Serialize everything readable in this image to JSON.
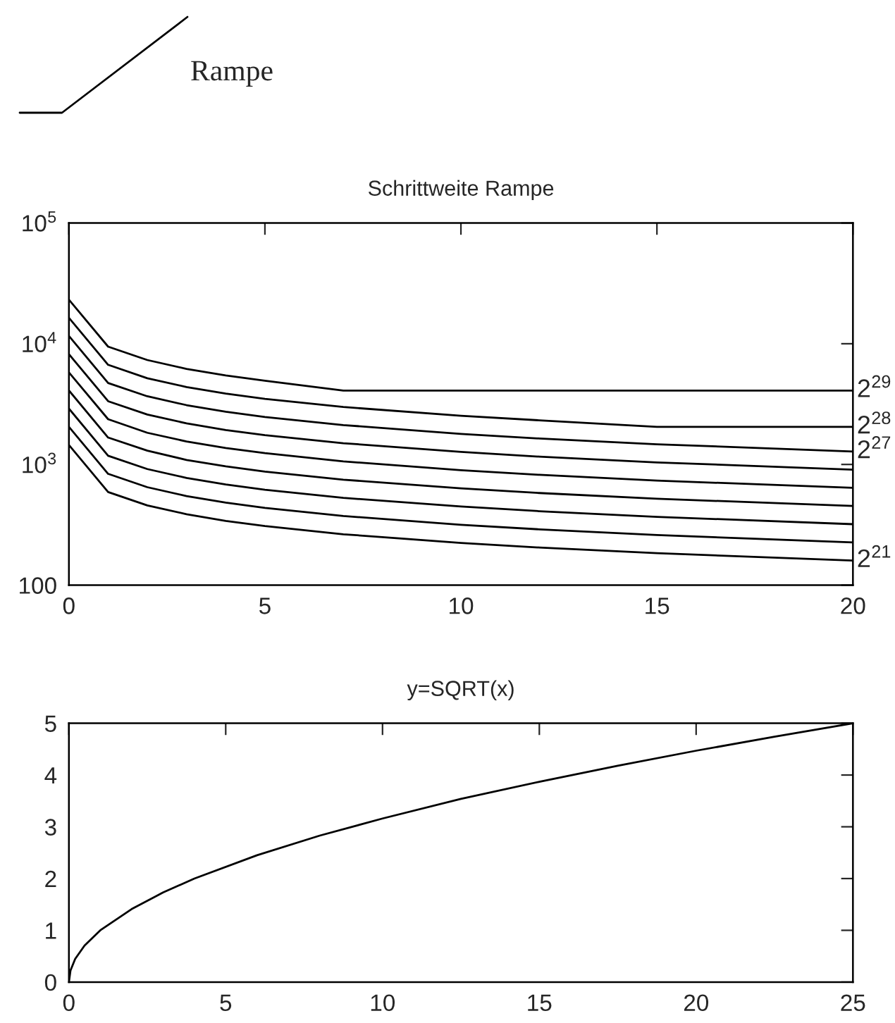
{
  "chart_data": [
    {
      "type": "line",
      "title": "Schrittweite Rampe",
      "annotations": [
        "Rampe"
      ],
      "log": "y",
      "x": [
        0,
        1,
        2,
        3,
        4,
        5,
        7,
        10,
        12,
        15,
        20
      ],
      "xlim": [
        0,
        20
      ],
      "xticks": [
        0,
        5,
        10,
        15,
        20
      ],
      "ylim": [
        100,
        100000
      ],
      "yticks": [
        100,
        {
          "value": 1000,
          "label": "10$^{3}$"
        },
        {
          "value": 10000,
          "label": "10$^{4}$"
        },
        {
          "value": 100000,
          "label": "10$^{5}$"
        }
      ],
      "series": [
        {
          "name": "2$^{29}$",
          "color": "#000000",
          "values": [
            23170,
            9460,
            7330,
            6190,
            5460,
            4940,
            4096,
            4096,
            4096,
            4096,
            4096
          ]
        },
        {
          "name": "2$^{28}$",
          "color": "#000000",
          "values": [
            16380,
            6690,
            5180,
            4380,
            3860,
            3490,
            2990,
            2530,
            2320,
            2048,
            2048
          ]
        },
        {
          "name": "2$^{27}$",
          "color": "#000000",
          "values": [
            11590,
            4730,
            3670,
            3100,
            2730,
            2470,
            2120,
            1790,
            1640,
            1470,
            1280
          ]
        },
        {
          "color": "#000000",
          "values": [
            8190,
            3340,
            2590,
            2190,
            1930,
            1750,
            1500,
            1270,
            1160,
            1040,
            905
          ]
        },
        {
          "color": "#000000",
          "values": [
            5790,
            2370,
            1830,
            1550,
            1370,
            1240,
            1060,
            895,
            820,
            735,
            640
          ]
        },
        {
          "color": "#000000",
          "values": [
            4100,
            1670,
            1300,
            1090,
            965,
            873,
            748,
            633,
            580,
            520,
            453
          ]
        },
        {
          "color": "#000000",
          "values": [
            2900,
            1180,
            916,
            774,
            683,
            618,
            529,
            448,
            410,
            368,
            320
          ]
        },
        {
          "color": "#000000",
          "values": [
            2050,
            836,
            648,
            547,
            483,
            437,
            374,
            316,
            290,
            260,
            226
          ]
        },
        {
          "name": "2$^{21}$",
          "color": "#000000",
          "values": [
            1450,
            591,
            458,
            387,
            341,
            309,
            264,
            224,
            205,
            184,
            160
          ]
        }
      ]
    },
    {
      "type": "line",
      "title": "y=SQRT(x)",
      "x": [
        0,
        0.05,
        0.2,
        0.5,
        1,
        2,
        3,
        4,
        6,
        8,
        10,
        12.5,
        15,
        17.5,
        20,
        22.5,
        25
      ],
      "xlim": [
        0,
        25
      ],
      "xticks": [
        0,
        5,
        10,
        15,
        20,
        25
      ],
      "ylim": [
        0,
        5
      ],
      "yticks": [
        0,
        1,
        2,
        3,
        4,
        5
      ],
      "series": [
        {
          "color": "#000000",
          "values": [
            0,
            0.224,
            0.447,
            0.707,
            1,
            1.41,
            1.73,
            2,
            2.45,
            2.83,
            3.16,
            3.54,
            3.87,
            4.18,
            4.47,
            4.74,
            5
          ]
        }
      ]
    }
  ]
}
